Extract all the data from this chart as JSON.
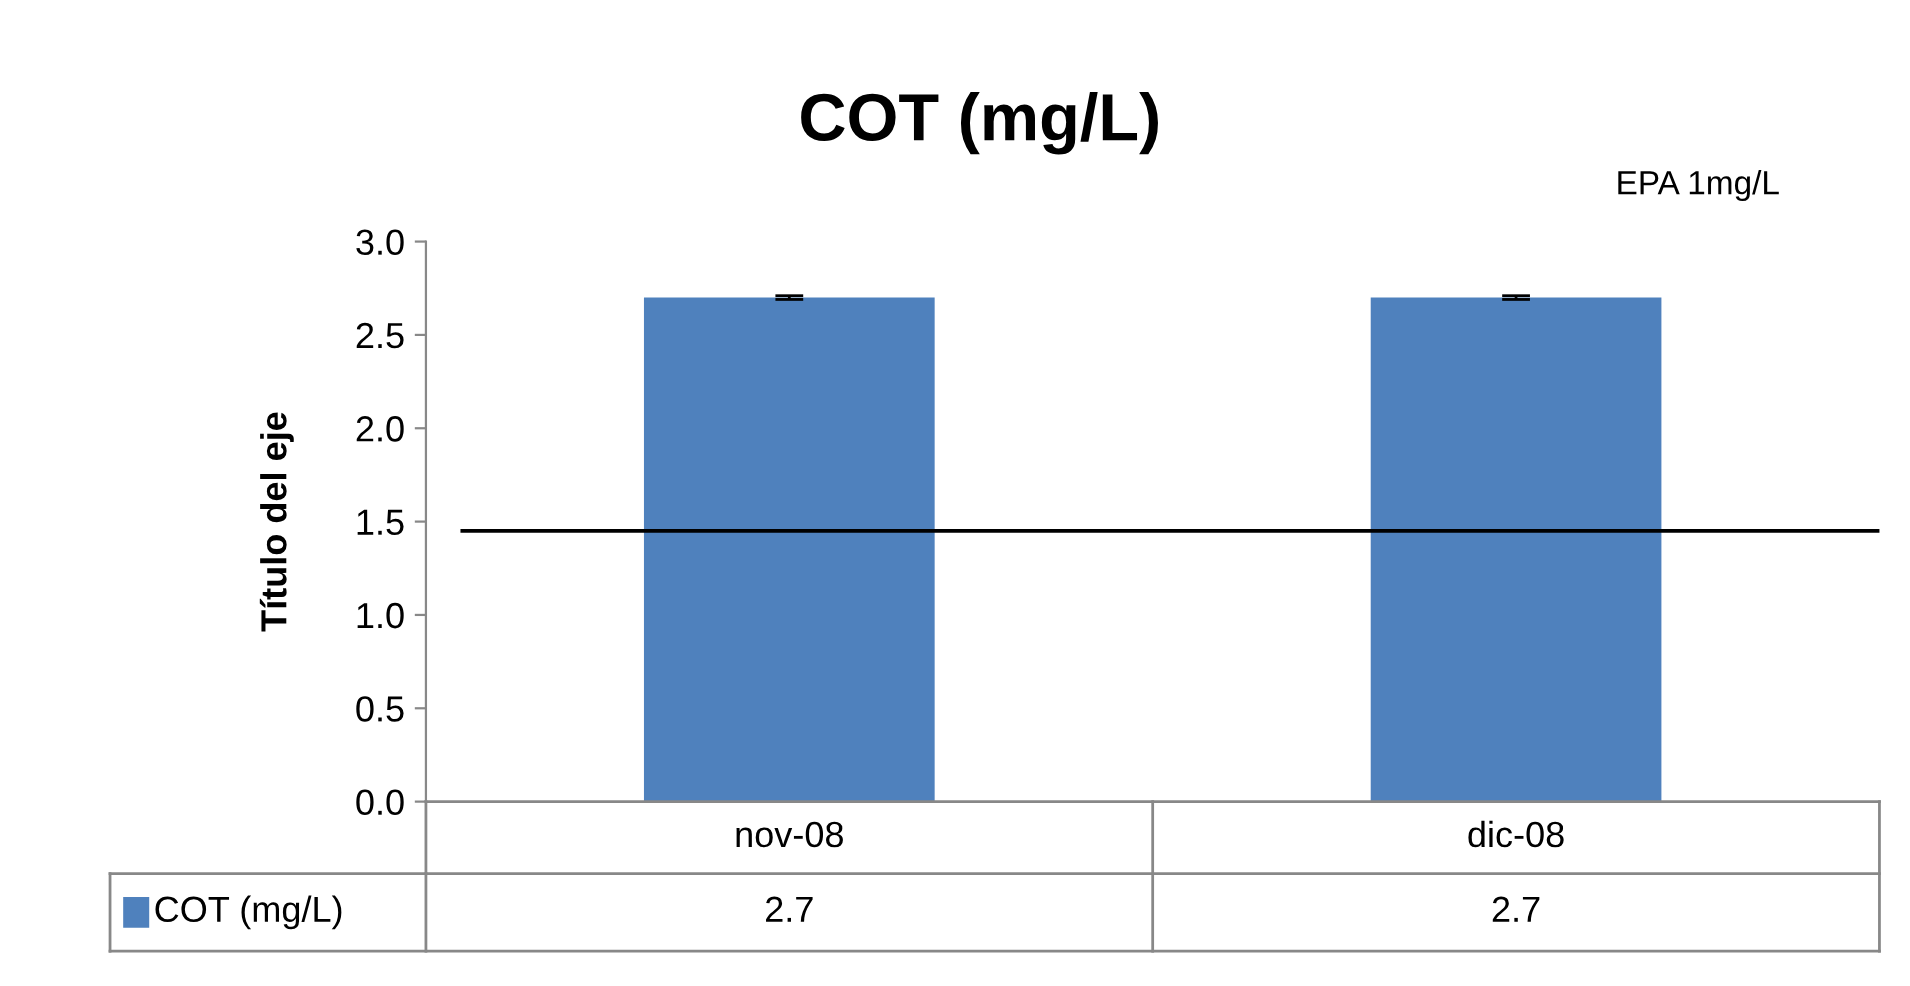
{
  "chart_data": {
    "type": "bar",
    "title": "COT (mg/L)",
    "ylabel": "Título del eje",
    "categories": [
      "nov-08",
      "dic-08"
    ],
    "series": [
      {
        "name": "COT (mg/L)",
        "color": "#4f81bd",
        "values": [
          2.7,
          2.7
        ],
        "errors": [
          0.01,
          0.01
        ]
      }
    ],
    "ylim": [
      0,
      3.0
    ],
    "yticks": [
      {
        "value": 0,
        "label": "0.0"
      },
      {
        "value": 0.5,
        "label": "0.5"
      },
      {
        "value": 1.0,
        "label": "1.0"
      },
      {
        "value": 1.5,
        "label": "1.5"
      },
      {
        "value": 2.0,
        "label": "2.0"
      },
      {
        "value": 2.5,
        "label": "2.5"
      },
      {
        "value": 3.0,
        "label": "3.0"
      }
    ],
    "ref_lines": [
      {
        "axis": "y",
        "value": 1.45,
        "label": "EPA 1mg/L",
        "color": "#000000"
      }
    ],
    "data_labels": true,
    "grid": false,
    "legend": "bottom"
  }
}
